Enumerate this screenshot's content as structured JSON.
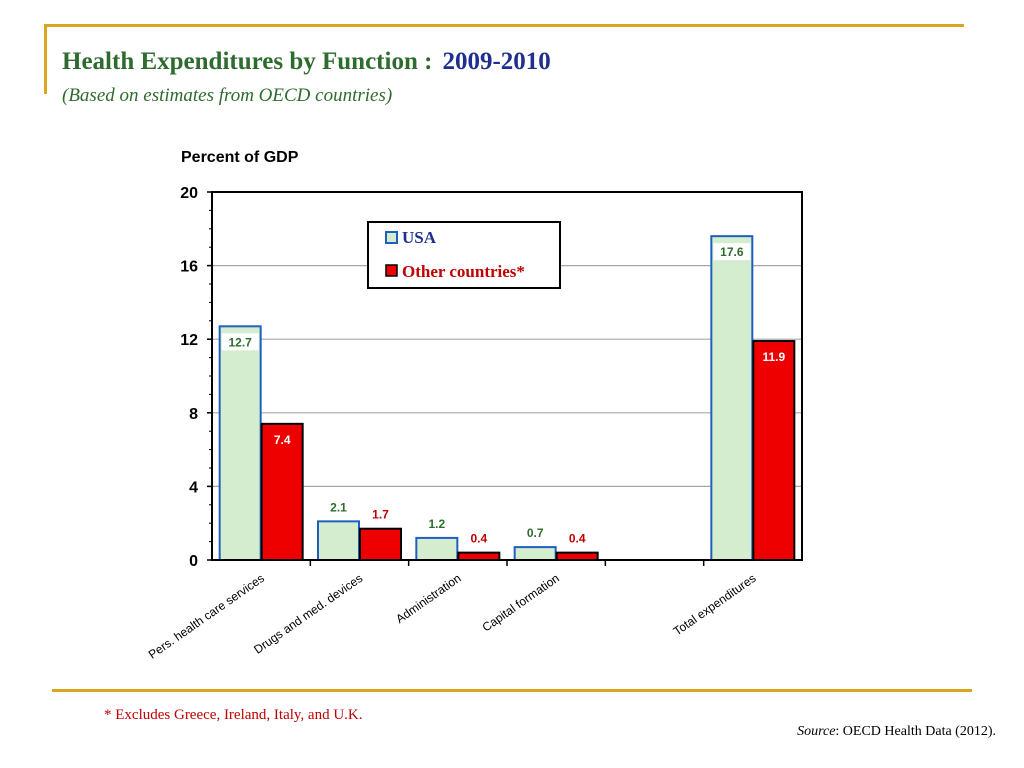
{
  "header": {
    "title_main": "Health Expenditures by Function :",
    "title_years": "2009-2010",
    "subtitle": "(Based on estimates from OECD countries)"
  },
  "footer": {
    "footnote": "* Excludes Greece, Ireland, Italy, and U.K.",
    "source_label": "Source",
    "source_text": ": OECD Health Data (2012)."
  },
  "colors": {
    "accent_rule": "#DAA520",
    "title_green": "#2E6B2E",
    "title_blue": "#1F2F8F",
    "usa_fill": "#D4EDCF",
    "usa_stroke": "#1F5FBF",
    "usa_label": "#2E6B2E",
    "other_fill": "#EE0000",
    "other_stroke": "#000000",
    "other_label_light": "#FFFFFF",
    "other_label_dark": "#C00000"
  },
  "chart_data": {
    "type": "bar",
    "ylabel": "Percent of GDP",
    "ylim": [
      0,
      20
    ],
    "yticks": [
      0,
      4,
      8,
      12,
      16,
      20
    ],
    "grid": true,
    "legend_position": "top-center",
    "categories": [
      "Pers. health care services",
      "Drugs and med. devices",
      "Administration",
      "Capital formation",
      "",
      "Total expenditures"
    ],
    "series": [
      {
        "name": "USA",
        "values": [
          12.7,
          2.1,
          1.2,
          0.7,
          null,
          17.6
        ],
        "labels": [
          "12.7",
          "2.1",
          "1.2",
          "0.7",
          "",
          "17.6"
        ]
      },
      {
        "name": "Other countries*",
        "values": [
          7.4,
          1.7,
          0.4,
          0.4,
          null,
          11.9
        ],
        "labels": [
          "7.4",
          "1.7",
          "0.4",
          "0.4",
          "",
          "11.9"
        ]
      }
    ]
  }
}
